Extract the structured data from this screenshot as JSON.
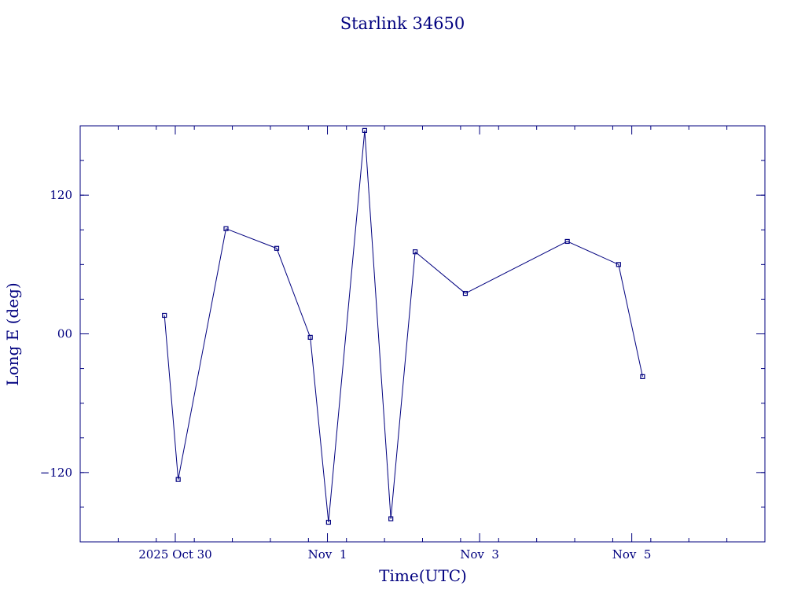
{
  "chart_data": {
    "type": "line",
    "title": "Starlink 34650",
    "xlabel": "Time(UTC)",
    "ylabel": "Long E (deg)",
    "x_axis": {
      "type": "date",
      "range": [
        "2025-10-28T18:00",
        "2025-11-06T18:00"
      ],
      "major_ticks": [
        {
          "date": "2025-10-30",
          "label": "2025 Oct 30"
        },
        {
          "date": "2025-11-01",
          "label": "Nov  1"
        },
        {
          "date": "2025-11-03",
          "label": "Nov  3"
        },
        {
          "date": "2025-11-05",
          "label": "Nov  5"
        }
      ]
    },
    "y_axis": {
      "range": [
        -180,
        180
      ],
      "major_ticks": [
        {
          "value": 120,
          "label": "120"
        },
        {
          "value": 0,
          "label": "00"
        },
        {
          "value": -120,
          "label": "−120"
        }
      ]
    },
    "grid": false,
    "color": "#00007f",
    "points": [
      {
        "t": "2025-10-29T20:35",
        "lon": 16
      },
      {
        "t": "2025-10-30T00:55",
        "lon": -126
      },
      {
        "t": "2025-10-30T16:00",
        "lon": 91
      },
      {
        "t": "2025-10-31T08:00",
        "lon": 74
      },
      {
        "t": "2025-10-31T18:35",
        "lon": -3
      },
      {
        "t": "2025-11-01T00:20",
        "lon": -163
      },
      {
        "t": "2025-11-01T11:45",
        "lon": 176
      },
      {
        "t": "2025-11-01T20:00",
        "lon": -160
      },
      {
        "t": "2025-11-02T03:40",
        "lon": 71
      },
      {
        "t": "2025-11-02T19:30",
        "lon": 35
      },
      {
        "t": "2025-11-04T03:40",
        "lon": 80
      },
      {
        "t": "2025-11-04T19:50",
        "lon": 60
      },
      {
        "t": "2025-11-05T03:25",
        "lon": -37
      }
    ]
  }
}
